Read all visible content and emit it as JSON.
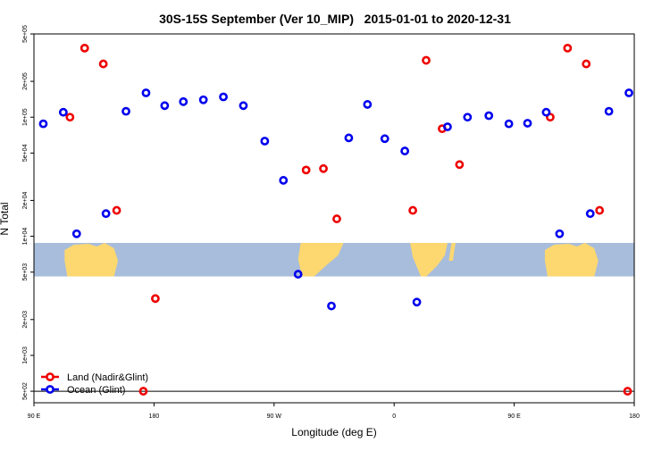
{
  "chart_data": {
    "type": "scatter",
    "title": "30S-15S September (Ver 10_MIP)   2015-01-01 to 2020-12-31",
    "xlabel": "Longitude (deg E)",
    "ylabel": "N Total",
    "x_scale": "longitude, 90 E to 180 (wrapping through 180 and 90 W)",
    "y_scale": "log",
    "xlim": [
      90,
      540
    ],
    "ylim": [
      400,
      500000
    ],
    "x_ticks": [
      {
        "value": 90,
        "label": "90 E"
      },
      {
        "value": 180,
        "label": "180"
      },
      {
        "value": 270,
        "label": "90 W"
      },
      {
        "value": 360,
        "label": "0"
      },
      {
        "value": 450,
        "label": "90 E"
      },
      {
        "value": 540,
        "label": "180"
      }
    ],
    "y_ticks": [
      {
        "value": 500,
        "label": "5e+02"
      },
      {
        "value": 1000,
        "label": "1e+03"
      },
      {
        "value": 2000,
        "label": "2e+03"
      },
      {
        "value": 5000,
        "label": "5e+03"
      },
      {
        "value": 10000,
        "label": "1e+04"
      },
      {
        "value": 20000,
        "label": "2e+04"
      },
      {
        "value": 50000,
        "label": "5e+04"
      },
      {
        "value": 100000,
        "label": "1e+05"
      },
      {
        "value": 200000,
        "label": "2e+05"
      },
      {
        "value": 500000,
        "label": "5e+05"
      }
    ],
    "reference_line": 500,
    "map_band": {
      "from": 4600,
      "to": 8800
    },
    "legend_position": "bottom-left",
    "grid": false,
    "series": [
      {
        "name": "Land (Nadir&Glint)",
        "color": "#ee0000",
        "points": [
          {
            "x": 117,
            "y": 100000
          },
          {
            "x": 128,
            "y": 380000
          },
          {
            "x": 142,
            "y": 280000
          },
          {
            "x": 152,
            "y": 16500
          },
          {
            "x": 172,
            "y": 500
          },
          {
            "x": 181,
            "y": 3000
          },
          {
            "x": 294,
            "y": 36000
          },
          {
            "x": 307,
            "y": 37000
          },
          {
            "x": 317,
            "y": 14000
          },
          {
            "x": 374,
            "y": 16500
          },
          {
            "x": 384,
            "y": 300000
          },
          {
            "x": 396,
            "y": 80000
          },
          {
            "x": 409,
            "y": 40000
          },
          {
            "x": 477,
            "y": 100000
          },
          {
            "x": 490,
            "y": 380000
          },
          {
            "x": 504,
            "y": 280000
          },
          {
            "x": 514,
            "y": 16500
          },
          {
            "x": 535,
            "y": 500
          }
        ]
      },
      {
        "name": "Ocean (Glint)",
        "color": "#0000ee",
        "points": [
          {
            "x": 97,
            "y": 88000
          },
          {
            "x": 112,
            "y": 110000
          },
          {
            "x": 122,
            "y": 10500
          },
          {
            "x": 144,
            "y": 15500
          },
          {
            "x": 159,
            "y": 112000
          },
          {
            "x": 174,
            "y": 160000
          },
          {
            "x": 188,
            "y": 125000
          },
          {
            "x": 202,
            "y": 135000
          },
          {
            "x": 217,
            "y": 140000
          },
          {
            "x": 232,
            "y": 148000
          },
          {
            "x": 247,
            "y": 125000
          },
          {
            "x": 263,
            "y": 63000
          },
          {
            "x": 277,
            "y": 29500
          },
          {
            "x": 288,
            "y": 4800
          },
          {
            "x": 313,
            "y": 2600
          },
          {
            "x": 326,
            "y": 67000
          },
          {
            "x": 340,
            "y": 128000
          },
          {
            "x": 353,
            "y": 66000
          },
          {
            "x": 368,
            "y": 52000
          },
          {
            "x": 377,
            "y": 2800
          },
          {
            "x": 400,
            "y": 83000
          },
          {
            "x": 415,
            "y": 100000
          },
          {
            "x": 431,
            "y": 103000
          },
          {
            "x": 446,
            "y": 88000
          },
          {
            "x": 460,
            "y": 89000
          },
          {
            "x": 474,
            "y": 110000
          },
          {
            "x": 484,
            "y": 10500
          },
          {
            "x": 507,
            "y": 15500
          },
          {
            "x": 521,
            "y": 112000
          },
          {
            "x": 536,
            "y": 160000
          }
        ]
      }
    ]
  }
}
